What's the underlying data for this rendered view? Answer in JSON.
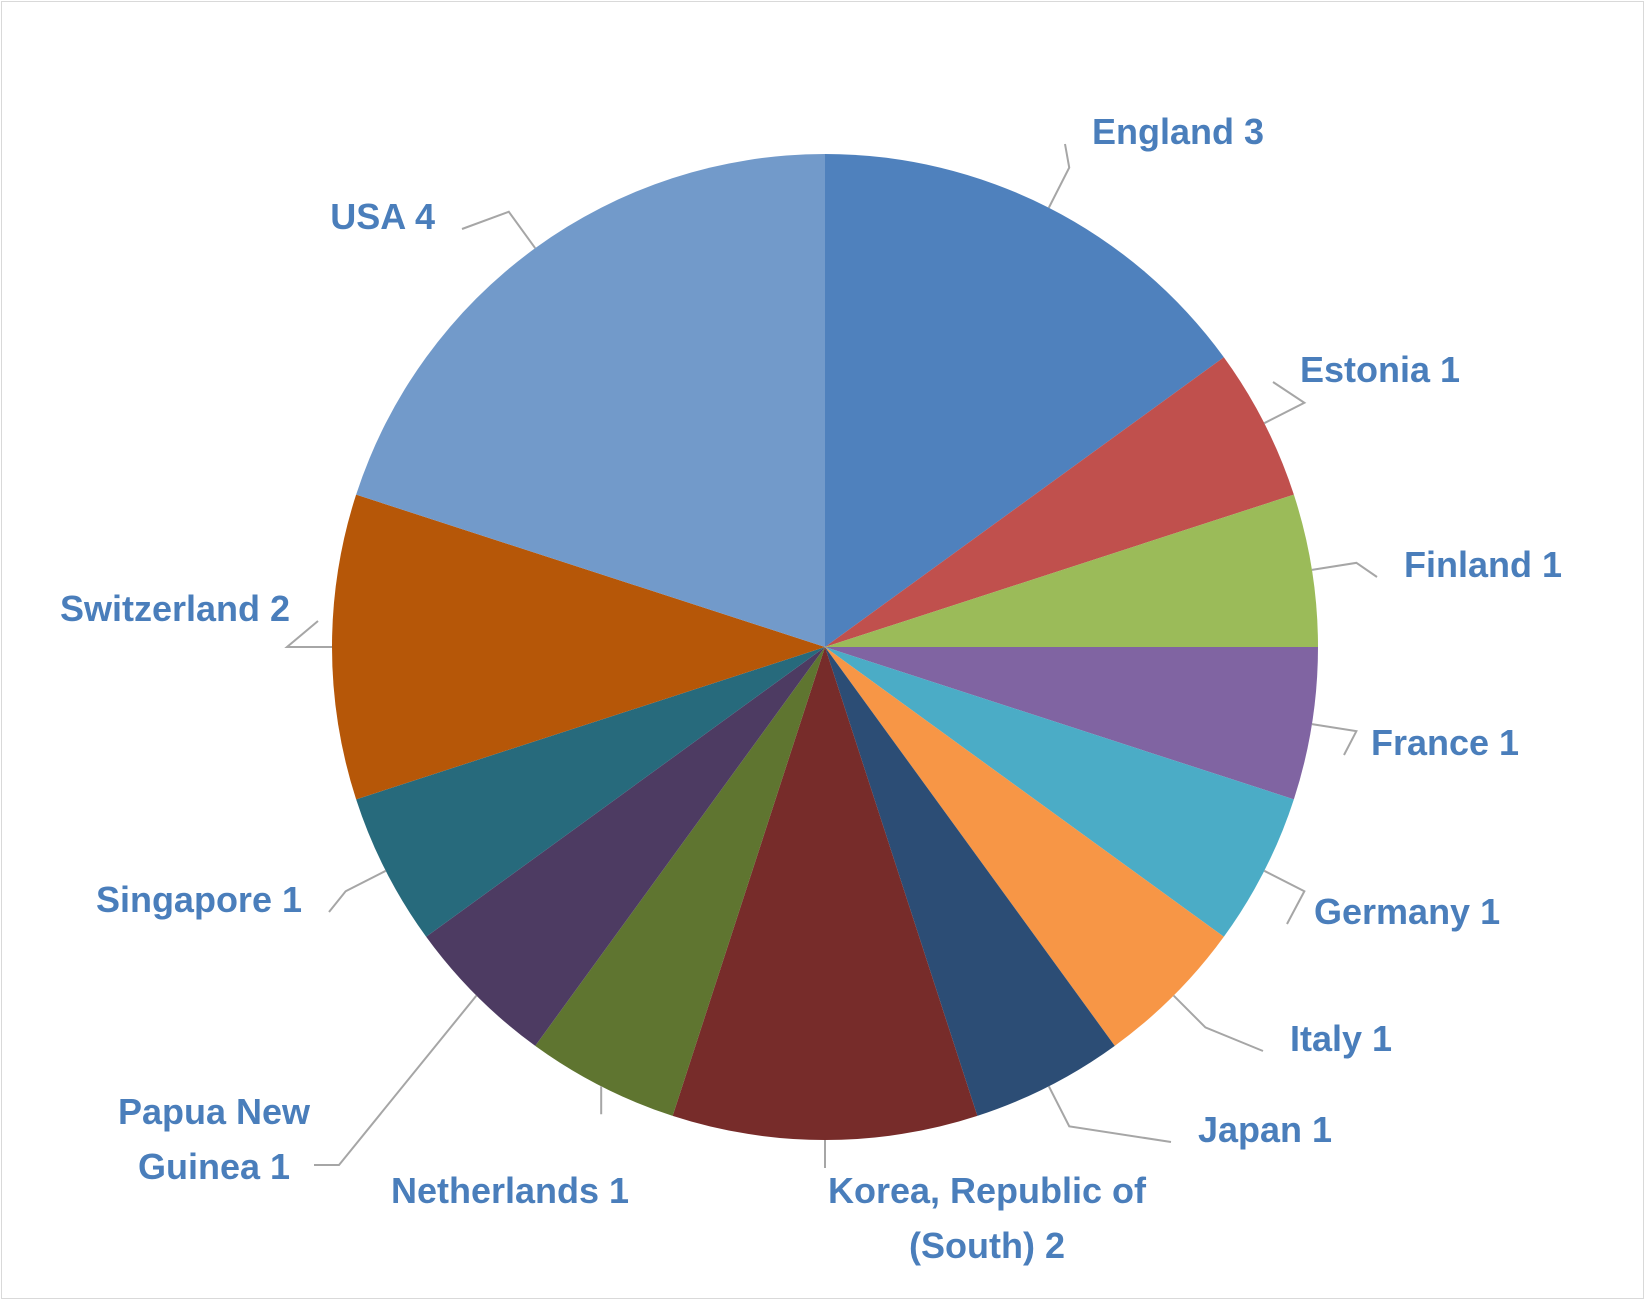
{
  "chart_data": {
    "type": "pie",
    "title": "",
    "slices": [
      {
        "label": "England",
        "value": 3,
        "label_lines": [
          "England 3"
        ],
        "color": "#4f81bd"
      },
      {
        "label": "Estonia",
        "value": 1,
        "label_lines": [
          "Estonia 1"
        ],
        "color": "#c0504d"
      },
      {
        "label": "Finland",
        "value": 1,
        "label_lines": [
          "Finland 1"
        ],
        "color": "#9bbb59"
      },
      {
        "label": "France",
        "value": 1,
        "label_lines": [
          "France 1"
        ],
        "color": "#8064a2"
      },
      {
        "label": "Germany",
        "value": 1,
        "label_lines": [
          "Germany 1"
        ],
        "color": "#4bacc6"
      },
      {
        "label": "Italy",
        "value": 1,
        "label_lines": [
          "Italy 1"
        ],
        "color": "#f79646"
      },
      {
        "label": "Japan",
        "value": 1,
        "label_lines": [
          "Japan 1"
        ],
        "color": "#2c4d75"
      },
      {
        "label": "Korea, Republic of (South)",
        "value": 2,
        "label_lines": [
          "Korea, Republic of",
          "(South)  2"
        ],
        "color": "#772c2a"
      },
      {
        "label": "Netherlands",
        "value": 1,
        "label_lines": [
          "Netherlands 1"
        ],
        "color": "#5f7530"
      },
      {
        "label": "Papua New Guinea",
        "value": 1,
        "label_lines": [
          "Papua New",
          "Guinea 1"
        ],
        "color": "#4d3b62"
      },
      {
        "label": "Singapore",
        "value": 1,
        "label_lines": [
          "Singapore 1"
        ],
        "color": "#276a7c"
      },
      {
        "label": "Switzerland",
        "value": 2,
        "label_lines": [
          "Switzerland 2"
        ],
        "color": "#b65708"
      },
      {
        "label": "USA",
        "value": 4,
        "label_lines": [
          "USA 4"
        ],
        "color": "#729aca"
      }
    ],
    "data_label_color": "#4a7ebb",
    "leader_line_color": "#a6a6a6",
    "legend": "none"
  }
}
